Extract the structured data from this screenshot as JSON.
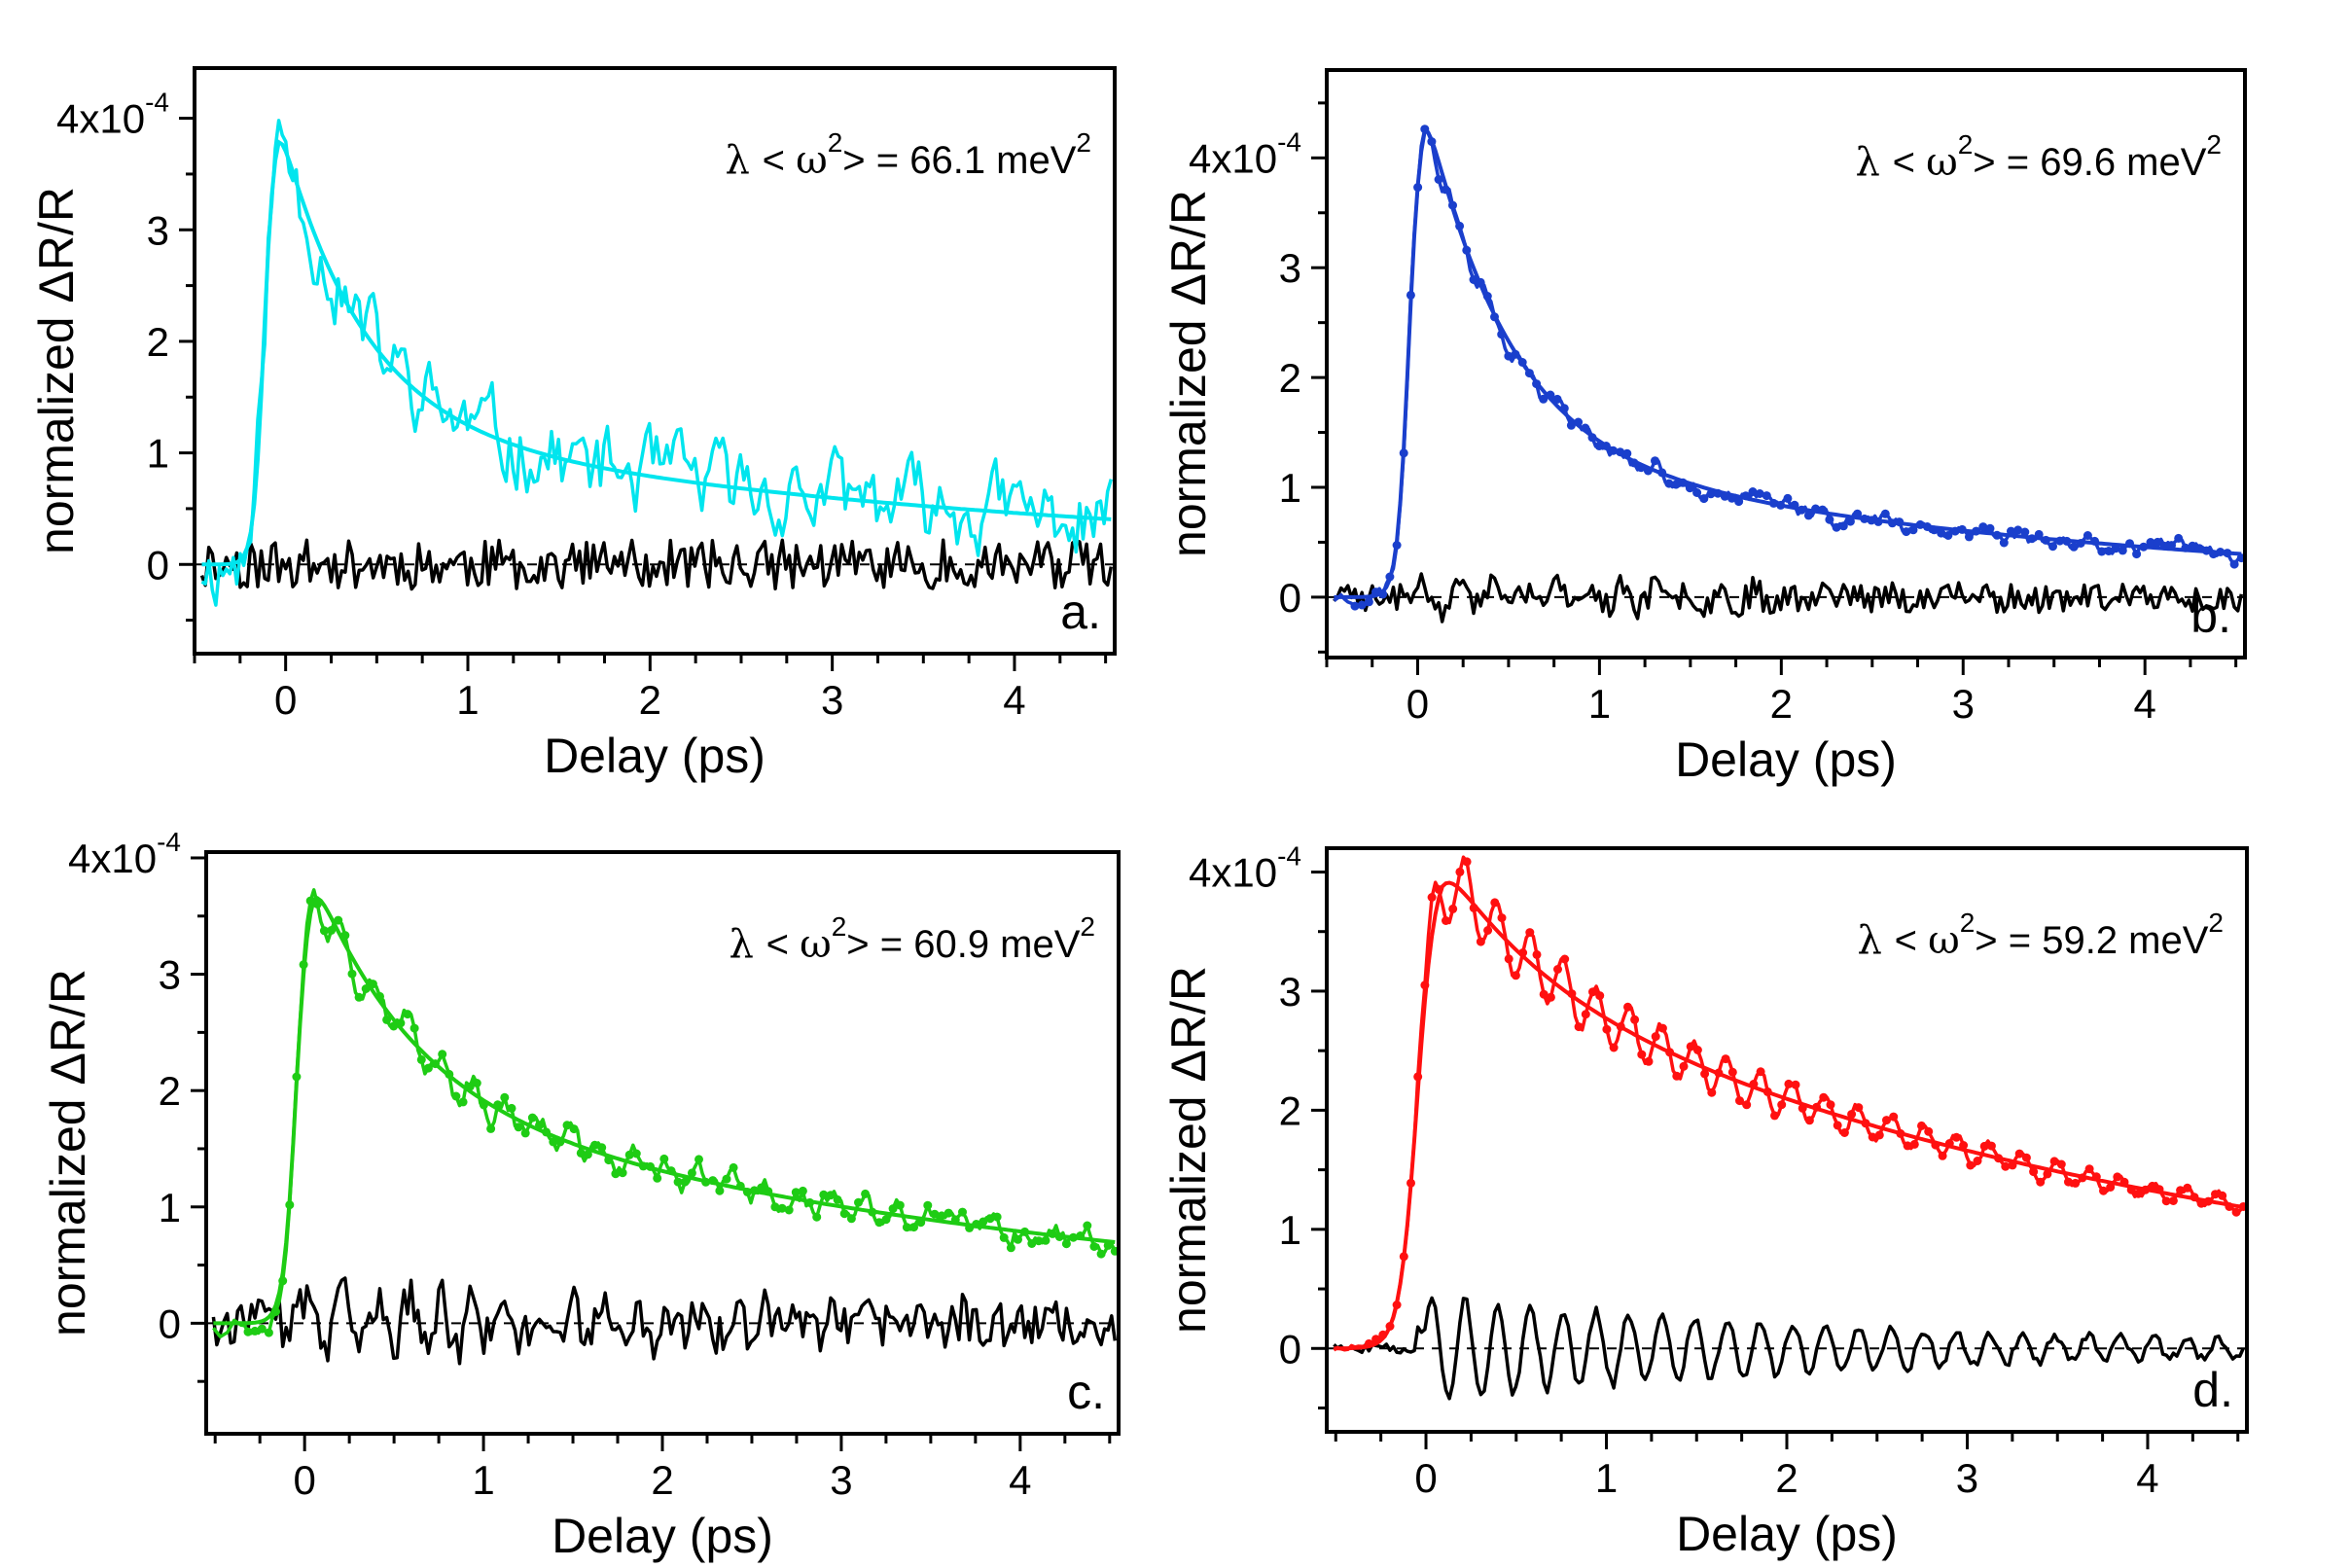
{
  "figure": {
    "title": ""
  },
  "chart_data": [
    {
      "type": "line",
      "panel_label": "a.",
      "xlabel": "Delay (ps)",
      "ylabel": "normalized ΔR/R",
      "y_multiplier_label": {
        "base": "4x10",
        "exp": "-4"
      },
      "annotation": {
        "lambda": "λ",
        "lt": "<",
        "omega": "ω",
        "sup": "2",
        "rest": "> = 66.1 meV",
        "unit_sup": "2"
      },
      "xlim": [
        -0.5,
        4.55
      ],
      "ylim": [
        -0.8,
        4.45
      ],
      "x_ticks": [
        0,
        1,
        2,
        3,
        4
      ],
      "y_ticks": [
        0,
        1,
        2,
        3
      ],
      "color": "#00e5ee",
      "markers": false,
      "params": {
        "peak": 4.0,
        "t0": -0.12,
        "rise": 0.08,
        "a1": 2.8,
        "tau1": 0.45,
        "a2": 1.3,
        "tau2": 4.0,
        "osc": 0.0,
        "noise": 0.3,
        "resid_noise": 0.22,
        "seed": 11
      },
      "series": [
        {
          "name": "data",
          "role": "data"
        },
        {
          "name": "fit",
          "role": "fit"
        },
        {
          "name": "residual",
          "role": "residual"
        }
      ]
    },
    {
      "type": "line",
      "panel_label": "b.",
      "xlabel": "Delay (ps)",
      "ylabel": "normalized ΔR/R",
      "y_multiplier_label": {
        "base": "4x10",
        "exp": "-4"
      },
      "annotation": {
        "lambda": "λ",
        "lt": "<",
        "omega": "ω",
        "sup": "2",
        "rest": "> = 69.6 meV",
        "unit_sup": "2"
      },
      "xlim": [
        -0.5,
        4.55
      ],
      "ylim": [
        -0.55,
        4.8
      ],
      "x_ticks": [
        0,
        1,
        2,
        3,
        4
      ],
      "y_ticks": [
        0,
        1,
        2,
        3
      ],
      "color": "#1a3fcc",
      "markers": true,
      "params": {
        "peak": 4.5,
        "t0": -0.05,
        "rise": 0.09,
        "a1": 3.2,
        "tau1": 0.45,
        "a2": 1.4,
        "tau2": 3.6,
        "osc": 0.08,
        "noise": 0.06,
        "resid_noise": 0.13,
        "seed": 23
      },
      "series": [
        {
          "name": "data",
          "role": "data"
        },
        {
          "name": "fit",
          "role": "fit"
        },
        {
          "name": "residual",
          "role": "residual"
        }
      ]
    },
    {
      "type": "line",
      "panel_label": "c.",
      "xlabel": "Delay (ps)",
      "ylabel": "normalized ΔR/R",
      "y_multiplier_label": {
        "base": "4x10",
        "exp": "-4"
      },
      "annotation": {
        "lambda": "λ",
        "lt": "<",
        "omega": "ω",
        "sup": "2",
        "rest": "> = 60.9 meV",
        "unit_sup": "2"
      },
      "xlim": [
        -0.55,
        4.55
      ],
      "ylim": [
        -0.95,
        4.05
      ],
      "x_ticks": [
        0,
        1,
        2,
        3,
        4
      ],
      "y_ticks": [
        0,
        1,
        2,
        3
      ],
      "color": "#1ecc14",
      "markers": true,
      "params": {
        "peak": 3.85,
        "t0": -0.05,
        "rise": 0.1,
        "a1": 1.9,
        "tau1": 0.55,
        "a2": 2.0,
        "tau2": 4.3,
        "osc": 0.18,
        "noise": 0.08,
        "resid_noise": 0.2,
        "seed": 37
      },
      "series": [
        {
          "name": "data",
          "role": "data"
        },
        {
          "name": "fit",
          "role": "fit"
        },
        {
          "name": "residual",
          "role": "residual"
        }
      ]
    },
    {
      "type": "line",
      "panel_label": "d.",
      "xlabel": "Delay (ps)",
      "ylabel": "normalized ΔR/R",
      "y_multiplier_label": {
        "base": "4x10",
        "exp": "-4"
      },
      "annotation": {
        "lambda": "λ",
        "lt": "<",
        "omega": "ω",
        "sup": "2",
        "rest": "> = 59.2 meV",
        "unit_sup": "2"
      },
      "xlim": [
        -0.55,
        4.55
      ],
      "ylim": [
        -0.7,
        4.2
      ],
      "x_ticks": [
        0,
        1,
        2,
        3,
        4
      ],
      "y_ticks": [
        0,
        1,
        2,
        3
      ],
      "color": "#ff1010",
      "markers": true,
      "params": {
        "peak": 4.1,
        "t0": -0.05,
        "rise": 0.14,
        "a1": 1.0,
        "tau1": 0.6,
        "a2": 3.15,
        "tau2": 4.6,
        "osc": 0.32,
        "noise": 0.03,
        "resid_noise": 0.04,
        "seed": 51
      },
      "series": [
        {
          "name": "data",
          "role": "data"
        },
        {
          "name": "fit",
          "role": "fit"
        },
        {
          "name": "residual",
          "role": "residual"
        }
      ]
    }
  ]
}
